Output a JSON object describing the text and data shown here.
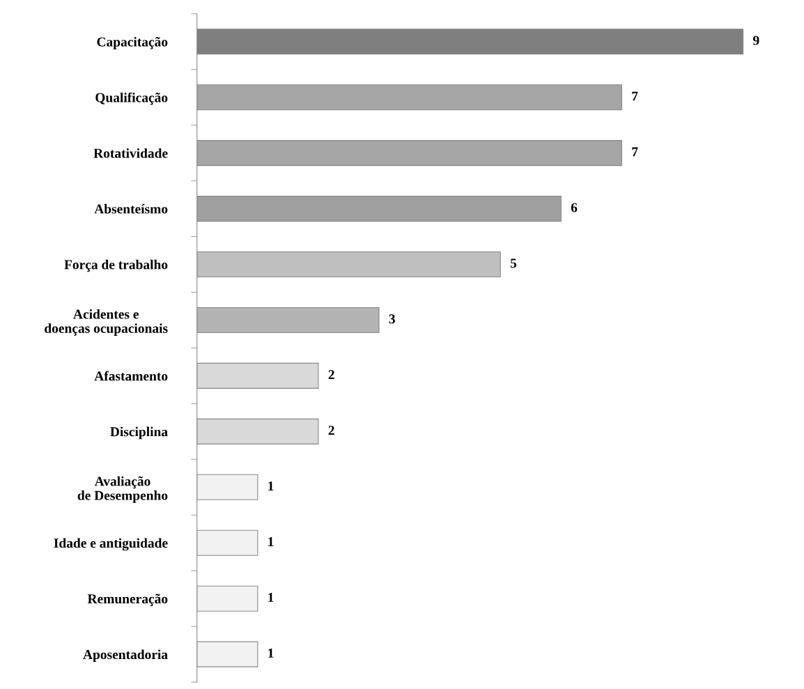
{
  "chart_data": {
    "type": "bar",
    "orientation": "horizontal",
    "categories": [
      "Capacitação",
      "Qualificação",
      "Rotatividade",
      "Absenteísmo",
      "Força de trabalho",
      "Acidentes e\ndoenças ocupacionais",
      "Afastamento",
      "Disciplina",
      "Avaliação\nde Desempenho",
      "Idade e antiguidade",
      "Remuneração",
      "Aposentadoria"
    ],
    "values": [
      9,
      7,
      7,
      6,
      5,
      3,
      2,
      2,
      1,
      1,
      1,
      1
    ],
    "colors": [
      "#7f7f7f",
      "#a6a6a6",
      "#a6a6a6",
      "#a0a0a0",
      "#bfbfbf",
      "#b3b3b3",
      "#d9d9d9",
      "#d9d9d9",
      "#f2f2f2",
      "#f2f2f2",
      "#f2f2f2",
      "#f2f2f2"
    ],
    "data_labels": true,
    "grid": false,
    "legend": false
  }
}
